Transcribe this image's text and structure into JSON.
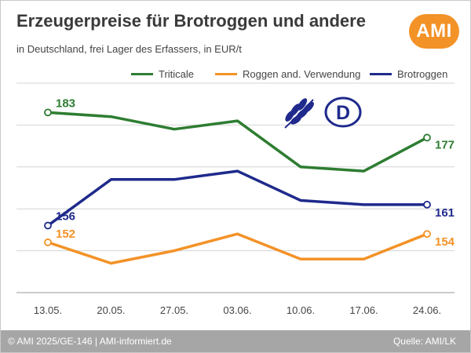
{
  "header": {
    "title": "Erzeugerpreise für Brotroggen und andere",
    "subtitle": "in Deutschland, frei Lager des Erfassers, in EUR/t",
    "logo_text": "AMI"
  },
  "footer": {
    "left": "© AMI 2025/GE-146 | AMI-informiert.de",
    "right": "Quelle: AMI/LK"
  },
  "colors": {
    "triticale": "#2e7d32",
    "roggen": "#f39227",
    "brotroggen": "#1f2a8c",
    "brand": "#f39227",
    "badge": "#1f2a8c"
  },
  "chart_data": {
    "type": "line",
    "categories": [
      "13.05.",
      "20.05.",
      "27.05.",
      "03.06.",
      "10.06.",
      "17.06.",
      "24.06."
    ],
    "series": [
      {
        "name": "Triticale",
        "key": "triticale",
        "values": [
          183,
          182,
          179,
          181,
          170,
          169,
          177
        ],
        "start_label": "183",
        "end_label": "177"
      },
      {
        "name": "Roggen and. Verwendung",
        "key": "roggen",
        "values": [
          152,
          147,
          150,
          154,
          148,
          148,
          154
        ],
        "start_label": "152",
        "end_label": "154"
      },
      {
        "name": "Brotroggen",
        "key": "brotroggen",
        "values": [
          156,
          167,
          167,
          169,
          162,
          161,
          161
        ],
        "start_label": "156",
        "end_label": "161"
      }
    ],
    "ylim": [
      140,
      190
    ],
    "legend_position": "top-right",
    "grid": "horizontal",
    "badge_letter": "D"
  }
}
